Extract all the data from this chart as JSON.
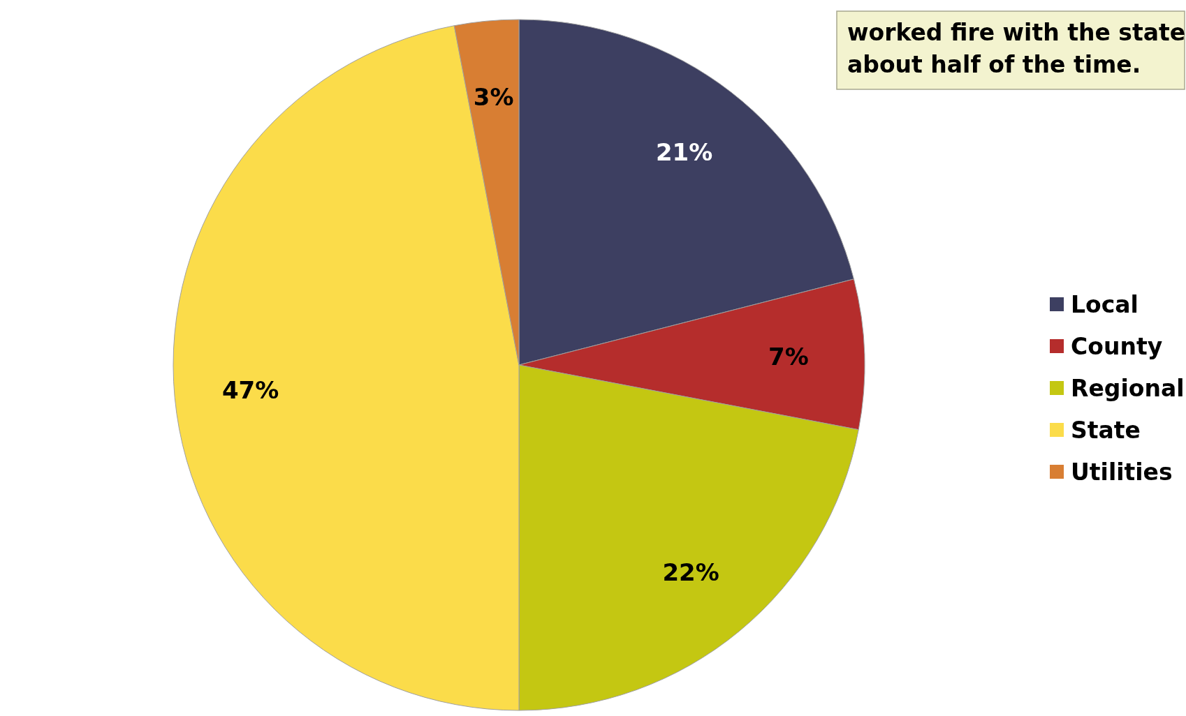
{
  "chart_data": {
    "type": "pie",
    "categories": [
      "Local",
      "County",
      "Regional",
      "State",
      "Utilities"
    ],
    "values": [
      21,
      7,
      22,
      47,
      3
    ],
    "colors": [
      "#3d3f61",
      "#b52d2c",
      "#c4c712",
      "#fbdc4a",
      "#d87e33"
    ],
    "value_labels": [
      "21%",
      "7%",
      "22%",
      "47%",
      "3%"
    ],
    "legend": "right",
    "annotations": [
      "worked fire with the state about half of the time."
    ]
  }
}
